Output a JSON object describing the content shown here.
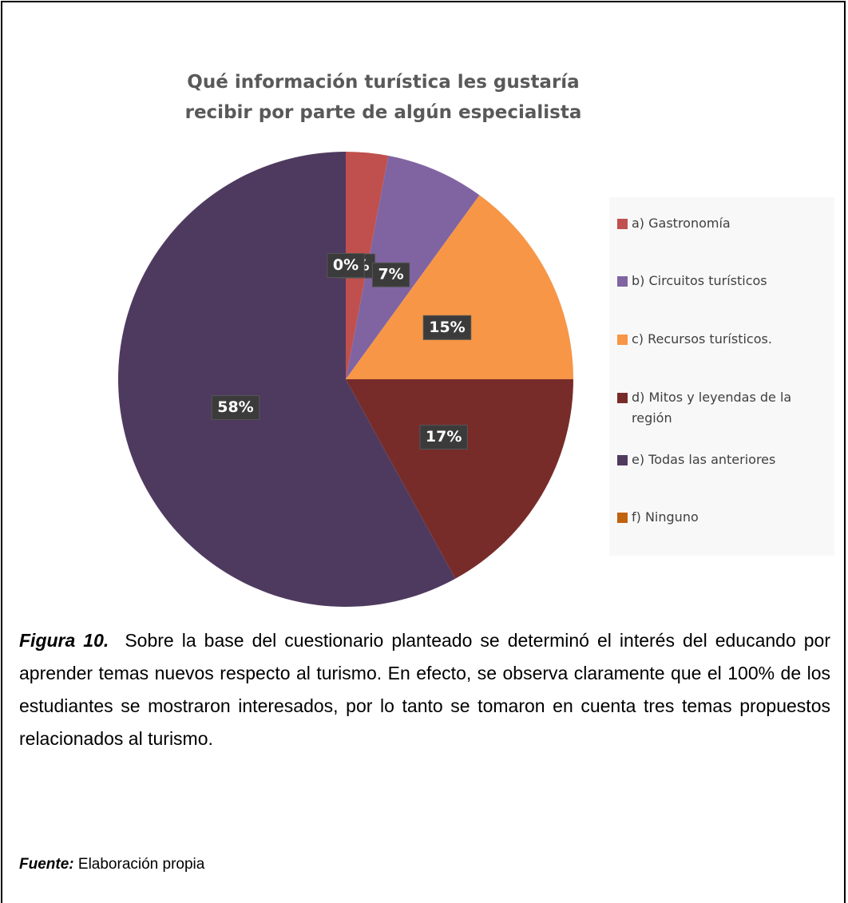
{
  "chart_data": {
    "type": "pie",
    "title": "Qué información turística les gustaría recibir por parte de algún especialista",
    "categories": [
      "a) Gastronomía",
      "b) Circuitos turísticos",
      "c) Recursos turísticos.",
      "d) Mitos y leyendas de la región",
      "e) Todas las anteriores",
      "f) Ninguno"
    ],
    "values": [
      3,
      7,
      15,
      17,
      58,
      0
    ],
    "value_labels": [
      "3%",
      "7%",
      "15%",
      "17%",
      "58%",
      "0%"
    ],
    "colors": [
      "#c0504d",
      "#8064a2",
      "#f79646",
      "#772c2a",
      "#4f3a5f",
      "#c0630f"
    ],
    "legend": "right"
  },
  "caption": {
    "label": "Figura 10.",
    "text": "Sobre la base del cuestionario planteado se determinó el interés del educando por aprender temas nuevos respecto al turismo. En efecto, se observa claramente que el 100% de los estudiantes se mostraron interesados, por lo tanto se tomaron en cuenta tres temas propuestos relacionados al turismo."
  },
  "source": {
    "label": "Fuente:",
    "text": "Elaboración propia"
  }
}
